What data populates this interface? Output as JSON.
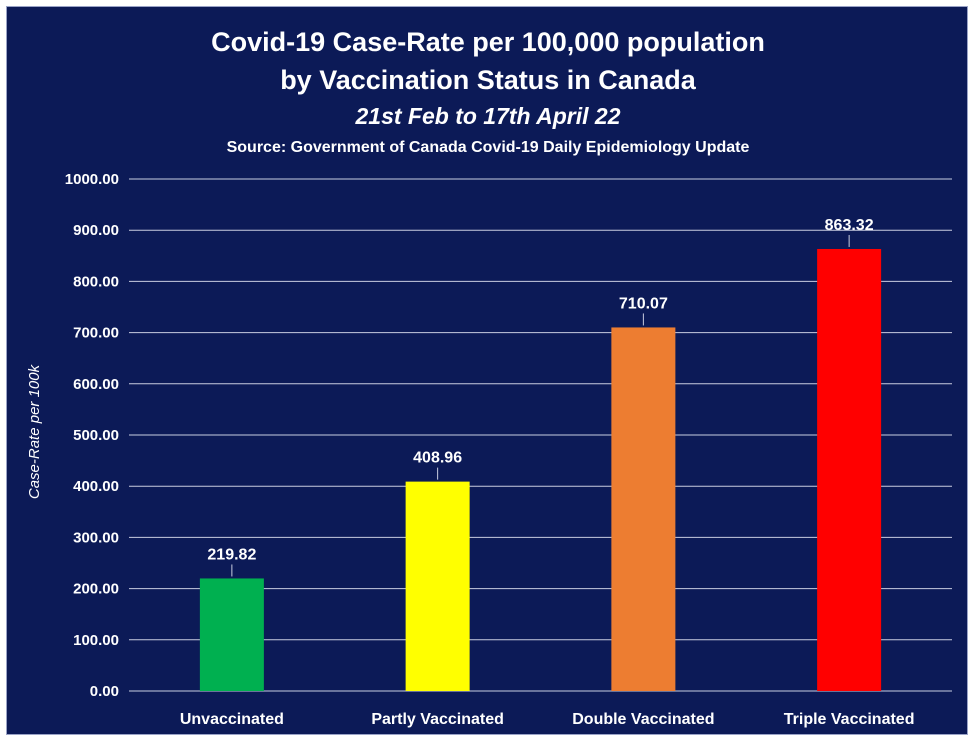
{
  "chart_data": {
    "type": "bar",
    "title_lines": [
      "Covid-19 Case-Rate per 100,000 population",
      "by Vaccination Status in Canada"
    ],
    "subtitle": "21st Feb to 17th April 22",
    "source": "Source: Government of Canada Covid-19 Daily Epidemiology Update",
    "ylabel": "Case-Rate per 100k",
    "xlabel": "",
    "categories": [
      "Unvaccinated",
      "Partly Vaccinated",
      "Double Vaccinated",
      "Triple Vaccinated"
    ],
    "values": [
      219.82,
      408.96,
      710.07,
      863.32
    ],
    "value_labels": [
      "219.82",
      "408.96",
      "710.07",
      "863.32"
    ],
    "colors": [
      "#00b050",
      "#ffff00",
      "#ed7d31",
      "#ff0000"
    ],
    "ylim": [
      0,
      1000
    ],
    "yticks": [
      0,
      100,
      200,
      300,
      400,
      500,
      600,
      700,
      800,
      900,
      1000
    ],
    "ytick_labels": [
      "0.00",
      "100.00",
      "200.00",
      "300.00",
      "400.00",
      "500.00",
      "600.00",
      "700.00",
      "800.00",
      "900.00",
      "1000.00"
    ],
    "grid": true,
    "legend": false
  },
  "colors": {
    "background": "#0c1a57",
    "text": "#ffffff",
    "gridline": "#c9cde0"
  }
}
